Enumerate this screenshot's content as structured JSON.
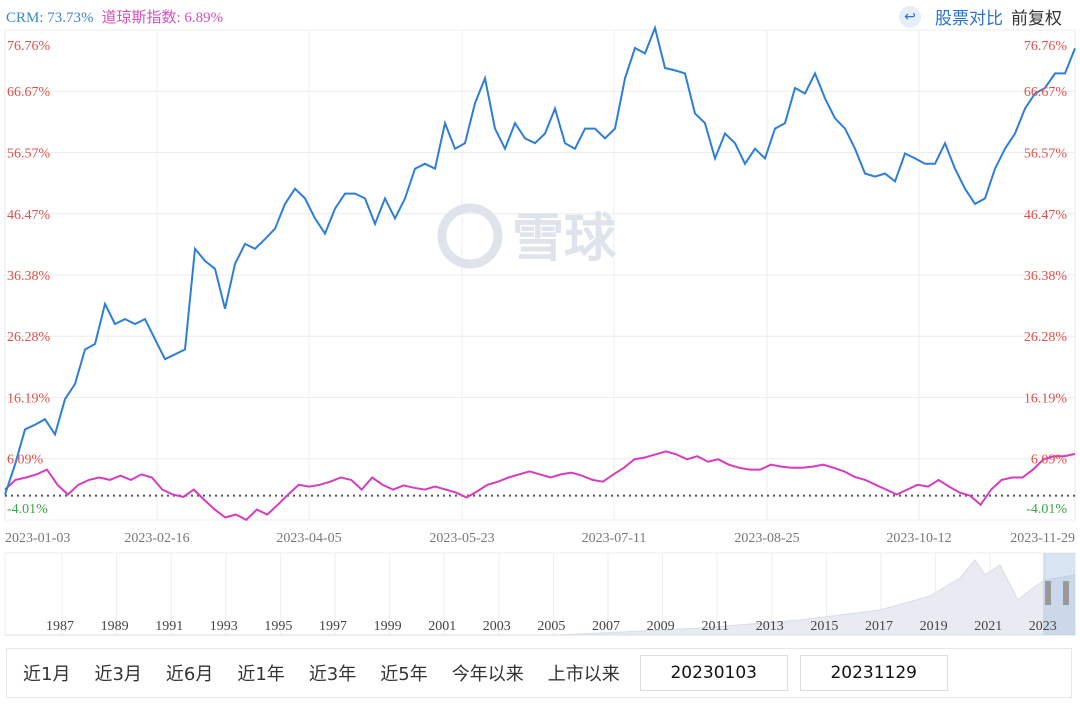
{
  "legend": {
    "crm": "CRM: 73.73%",
    "dow": "道琼斯指数: 6.89%"
  },
  "toolbar": {
    "back_icon": "undo-arrow-icon",
    "compare": "股票对比",
    "adjust": "前复权"
  },
  "watermark": "雪球",
  "colors": {
    "crm": "#2e7fd4",
    "dow": "#d63cbf",
    "up": "#e0504a",
    "down": "#3aa54a"
  },
  "chart_data": {
    "type": "line",
    "ylim": [
      -4.01,
      76.76
    ],
    "yticks": [
      "76.76%",
      "66.67%",
      "56.57%",
      "46.47%",
      "36.38%",
      "26.28%",
      "16.19%",
      "6.09%",
      "-4.01%"
    ],
    "ytick_values": [
      76.76,
      66.67,
      56.57,
      46.47,
      36.38,
      26.28,
      16.19,
      6.09,
      -4.01
    ],
    "xticks": [
      "2023-01-03",
      "2023-02-16",
      "2023-04-05",
      "2023-05-23",
      "2023-07-11",
      "2023-08-25",
      "2023-10-12",
      "2023-11-29"
    ],
    "baseline": 0,
    "series": [
      {
        "name": "CRM",
        "values": [
          0.17,
          5.1,
          10.9,
          11.7,
          12.6,
          10.1,
          15.9,
          18.4,
          24.1,
          25.0,
          31.6,
          28.3,
          29.1,
          28.3,
          29.1,
          25.8,
          22.5,
          23.3,
          24.1,
          40.7,
          38.7,
          37.4,
          30.8,
          38.2,
          41.5,
          40.7,
          42.3,
          44.0,
          48.1,
          50.6,
          49.0,
          45.7,
          43.2,
          47.3,
          49.8,
          49.8,
          49.0,
          44.8,
          49.0,
          45.7,
          49.0,
          53.9,
          54.7,
          53.9,
          61.4,
          57.2,
          58.1,
          64.7,
          68.8,
          60.5,
          57.2,
          61.4,
          58.9,
          58.1,
          59.7,
          63.8,
          58.1,
          57.2,
          60.5,
          60.5,
          58.9,
          60.5,
          68.8,
          73.8,
          72.9,
          77.1,
          70.5,
          70.1,
          69.6,
          63.0,
          61.4,
          55.6,
          59.7,
          58.1,
          54.7,
          57.2,
          55.6,
          60.5,
          61.4,
          67.2,
          66.3,
          69.6,
          65.5,
          62.2,
          60.5,
          57.2,
          53.1,
          52.6,
          53.1,
          51.8,
          56.4,
          55.6,
          54.7,
          54.7,
          58.1,
          53.9,
          50.6,
          48.1,
          49.0,
          53.9,
          57.2,
          59.7,
          63.8,
          66.3,
          67.2,
          69.6,
          69.6,
          73.73
        ]
      },
      {
        "name": "道琼斯指数",
        "values": [
          1.0,
          2.6,
          3.0,
          3.5,
          4.3,
          1.8,
          0.2,
          1.8,
          2.6,
          3.0,
          2.6,
          3.3,
          2.6,
          3.5,
          3.0,
          1.0,
          0.2,
          -0.2,
          1.0,
          -0.7,
          -2.3,
          -3.6,
          -3.1,
          -4.0,
          -2.3,
          -3.1,
          -1.5,
          0.2,
          1.8,
          1.5,
          1.8,
          2.3,
          3.0,
          2.6,
          1.0,
          3.0,
          1.8,
          1.0,
          1.7,
          1.3,
          1.0,
          1.5,
          1.0,
          0.5,
          -0.3,
          0.7,
          1.8,
          2.3,
          3.0,
          3.5,
          4.0,
          3.5,
          3.0,
          3.5,
          3.8,
          3.3,
          2.6,
          2.3,
          3.5,
          4.6,
          6.0,
          6.3,
          6.8,
          7.3,
          6.8,
          6.0,
          6.5,
          5.6,
          6.0,
          5.1,
          4.6,
          4.3,
          4.3,
          5.1,
          4.8,
          4.6,
          4.6,
          4.8,
          5.1,
          4.6,
          4.0,
          3.1,
          2.6,
          1.8,
          1.0,
          0.2,
          1.0,
          1.8,
          1.5,
          2.6,
          1.5,
          0.5,
          0,
          -1.5,
          1.0,
          2.6,
          3.0,
          3.0,
          4.3,
          6.0,
          6.5,
          6.5,
          6.89
        ]
      }
    ]
  },
  "navigator": {
    "years": [
      "1987",
      "1989",
      "1991",
      "1993",
      "1995",
      "1997",
      "1999",
      "2001",
      "2003",
      "2005",
      "2007",
      "2009",
      "2011",
      "2013",
      "2015",
      "2017",
      "2019",
      "2021",
      "2023"
    ],
    "selected_range": [
      "2023-01-03",
      "2023-11-29"
    ]
  },
  "ranges": [
    "近1月",
    "近3月",
    "近6月",
    "近1年",
    "近3年",
    "近5年",
    "今年以来",
    "上市以来"
  ],
  "start_date": "20230103",
  "end_date": "20231129"
}
